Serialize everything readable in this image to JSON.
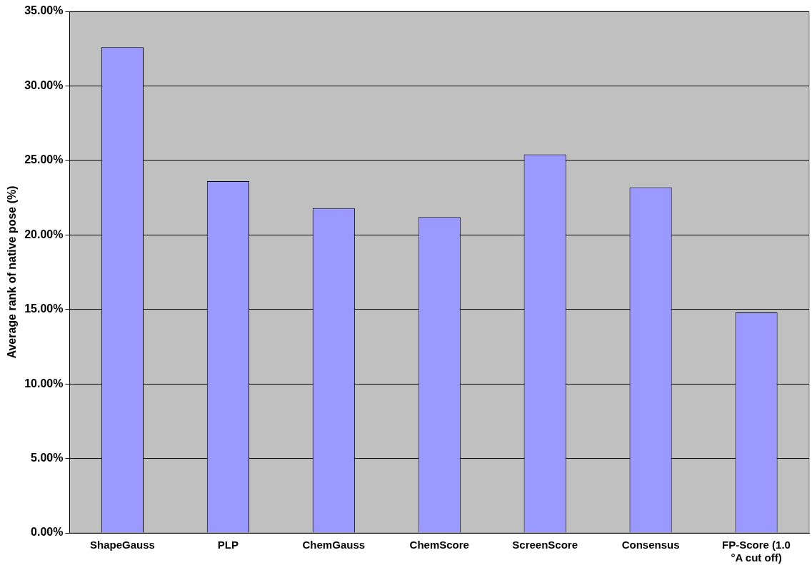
{
  "chart_data": {
    "type": "bar",
    "ylabel": "Average rank of native pose (%)",
    "categories": [
      "ShapeGauss",
      "PLP",
      "ChemGauss",
      "ChemScore",
      "ScreenScore",
      "Consensus",
      "FP-Score  (1.0 °A cut off)"
    ],
    "values": [
      32.6,
      23.6,
      21.8,
      21.2,
      25.4,
      23.2,
      14.8
    ],
    "color": "#9999ff",
    "ylim": [
      0,
      35
    ],
    "yticks": [
      {
        "value": 0,
        "label": "0.00%"
      },
      {
        "value": 5,
        "label": "5.00%"
      },
      {
        "value": 10,
        "label": "10.00%"
      },
      {
        "value": 15,
        "label": "15.00%"
      },
      {
        "value": 20,
        "label": "20.00%"
      },
      {
        "value": 25,
        "label": "25.00%"
      },
      {
        "value": 30,
        "label": "30.00%"
      },
      {
        "value": 35,
        "label": "35.00%"
      }
    ],
    "grid": "y",
    "legend": false
  }
}
